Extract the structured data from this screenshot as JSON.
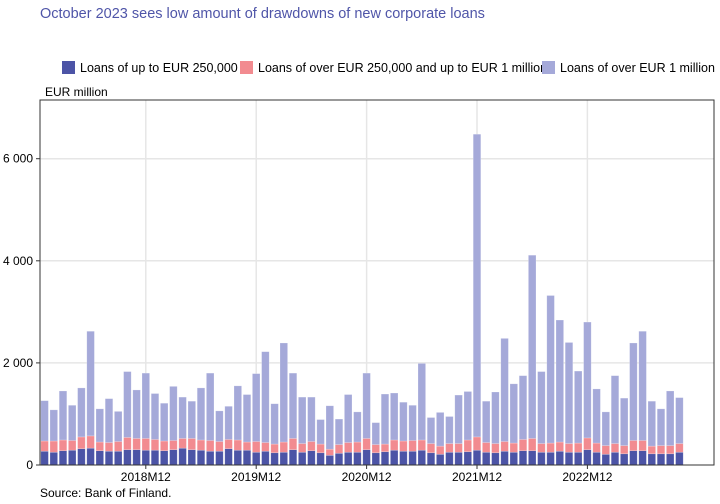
{
  "chart_data": {
    "type": "bar",
    "stacked": true,
    "title": "October 2023 sees low amount of drawdowns of new corporate loans",
    "ylabel": "EUR million",
    "source": "Source: Bank of Finland.",
    "ylim": [
      0,
      7150
    ],
    "yticks": [
      0,
      2000,
      4000,
      6000
    ],
    "ytick_labels": [
      "0",
      "2 000",
      "4 000",
      "6 000"
    ],
    "xtick_labels": [
      "2018M12",
      "2019M12",
      "2020M12",
      "2021M12",
      "2022M12"
    ],
    "grid": true,
    "legend_position": "top",
    "categories": [
      "2018M01",
      "2018M02",
      "2018M03",
      "2018M04",
      "2018M05",
      "2018M06",
      "2018M07",
      "2018M08",
      "2018M09",
      "2018M10",
      "2018M11",
      "2018M12",
      "2019M01",
      "2019M02",
      "2019M03",
      "2019M04",
      "2019M05",
      "2019M06",
      "2019M07",
      "2019M08",
      "2019M09",
      "2019M10",
      "2019M11",
      "2019M12",
      "2020M01",
      "2020M02",
      "2020M03",
      "2020M04",
      "2020M05",
      "2020M06",
      "2020M07",
      "2020M08",
      "2020M09",
      "2020M10",
      "2020M11",
      "2020M12",
      "2021M01",
      "2021M02",
      "2021M03",
      "2021M04",
      "2021M05",
      "2021M06",
      "2021M07",
      "2021M08",
      "2021M09",
      "2021M10",
      "2021M11",
      "2021M12",
      "2022M01",
      "2022M02",
      "2022M03",
      "2022M04",
      "2022M05",
      "2022M06",
      "2022M07",
      "2022M08",
      "2022M09",
      "2022M10",
      "2022M11",
      "2022M12",
      "2023M01",
      "2023M02",
      "2023M03",
      "2023M04",
      "2023M05",
      "2023M06",
      "2023M07",
      "2023M08",
      "2023M09",
      "2023M10"
    ],
    "series": [
      {
        "name": "Loans of up to EUR 250,000",
        "color": "#4c54a6",
        "values": [
          270,
          250,
          280,
          290,
          320,
          330,
          280,
          270,
          270,
          300,
          300,
          290,
          290,
          280,
          300,
          330,
          300,
          290,
          270,
          270,
          320,
          290,
          290,
          250,
          270,
          240,
          250,
          300,
          250,
          280,
          240,
          190,
          230,
          250,
          250,
          300,
          240,
          260,
          290,
          270,
          270,
          290,
          240,
          210,
          250,
          250,
          260,
          290,
          250,
          240,
          270,
          250,
          280,
          280,
          250,
          250,
          270,
          250,
          250,
          300,
          250,
          210,
          250,
          220,
          280,
          280,
          220,
          220,
          220,
          250
        ]
      },
      {
        "name": "Loans of over EUR 250,000 and up to EUR 1 million",
        "color": "#f28b90",
        "values": [
          200,
          220,
          210,
          190,
          230,
          240,
          170,
          170,
          190,
          240,
          220,
          230,
          210,
          190,
          180,
          190,
          220,
          200,
          210,
          190,
          180,
          200,
          160,
          210,
          170,
          170,
          200,
          220,
          170,
          180,
          170,
          120,
          170,
          190,
          200,
          220,
          160,
          150,
          200,
          200,
          210,
          200,
          180,
          160,
          170,
          170,
          230,
          260,
          190,
          180,
          190,
          180,
          220,
          240,
          170,
          180,
          180,
          170,
          180,
          230,
          180,
          170,
          170,
          160,
          200,
          200,
          150,
          160,
          160,
          170
        ]
      },
      {
        "name": "Loans of over EUR 1 million",
        "color": "#a5a9d9",
        "values": [
          790,
          610,
          960,
          690,
          960,
          2050,
          650,
          860,
          590,
          1290,
          950,
          1280,
          900,
          740,
          1060,
          810,
          730,
          1020,
          1320,
          600,
          650,
          1060,
          930,
          1330,
          1780,
          790,
          1940,
          1280,
          910,
          870,
          480,
          850,
          500,
          940,
          590,
          1280,
          430,
          980,
          920,
          760,
          690,
          1500,
          510,
          660,
          530,
          950,
          950,
          5930,
          810,
          1010,
          2020,
          1160,
          1250,
          3590,
          1410,
          2890,
          2390,
          1980,
          1410,
          2270,
          1060,
          660,
          1330,
          930,
          1910,
          2140,
          880,
          720,
          1070,
          900
        ]
      }
    ]
  }
}
